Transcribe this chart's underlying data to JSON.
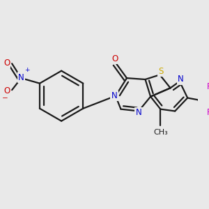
{
  "background_color": "#e9e9e9",
  "bond_color": "#1a1a1a",
  "bond_width": 1.6,
  "figsize": [
    3.0,
    3.0
  ],
  "dpi": 100,
  "colors": {
    "C": "#1a1a1a",
    "N": "#0000cc",
    "O": "#cc0000",
    "S": "#ccaa00",
    "F": "#cc00cc",
    "bond": "#1a1a1a"
  },
  "fs": 8.5
}
